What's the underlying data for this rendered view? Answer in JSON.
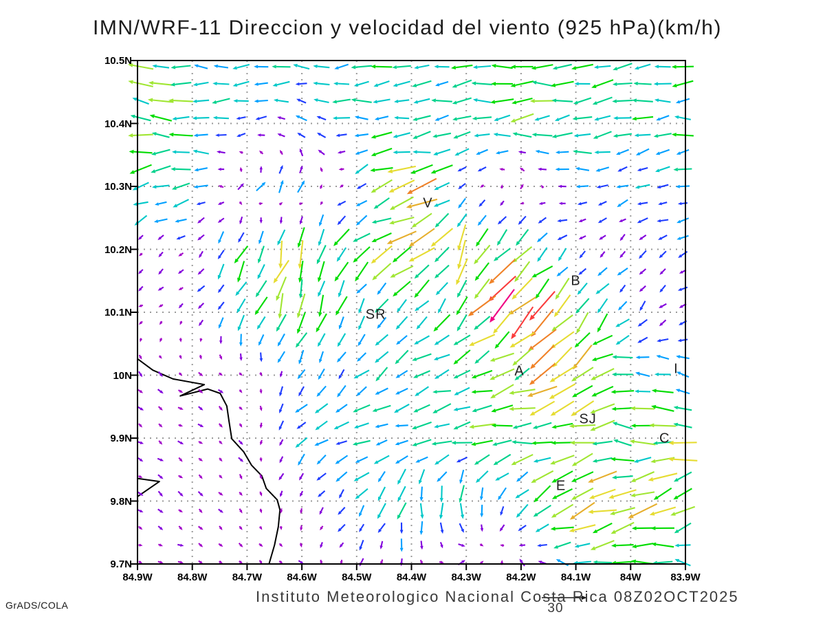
{
  "title": "IMN/WRF-11 Direccion y velocidad del viento (925 hPa)(km/h)",
  "footer": {
    "caption": "Instituto Meteorologico Nacional Costa Rica 08Z02OCT2025",
    "credit": "GrADS/COLA"
  },
  "reference_vector": {
    "label": "30",
    "value": 30,
    "units": "km/h"
  },
  "plot": {
    "lat_ticks": [
      {
        "label": "10.5N",
        "value": 10.5
      },
      {
        "label": "10.4N",
        "value": 10.4
      },
      {
        "label": "10.3N",
        "value": 10.3
      },
      {
        "label": "10.2N",
        "value": 10.2
      },
      {
        "label": "10.1N",
        "value": 10.1
      },
      {
        "label": "10N",
        "value": 10.0
      },
      {
        "label": "9.9N",
        "value": 9.9
      },
      {
        "label": "9.8N",
        "value": 9.8
      },
      {
        "label": "9.7N",
        "value": 9.7
      }
    ],
    "lon_ticks": [
      {
        "label": "84.9W",
        "value": -84.9
      },
      {
        "label": "84.8W",
        "value": -84.8
      },
      {
        "label": "84.7W",
        "value": -84.7
      },
      {
        "label": "84.6W",
        "value": -84.6
      },
      {
        "label": "84.5W",
        "value": -84.5
      },
      {
        "label": "84.4W",
        "value": -84.4
      },
      {
        "label": "84.3W",
        "value": -84.3
      },
      {
        "label": "84.2W",
        "value": -84.2
      },
      {
        "label": "84.1W",
        "value": -84.1
      },
      {
        "label": "84W",
        "value": -84.0
      },
      {
        "label": "83.9W",
        "value": -83.9
      }
    ],
    "lat_range": {
      "min": 9.7,
      "max": 10.5
    },
    "lon_range": {
      "min": -84.9,
      "max": -83.9
    }
  },
  "stations": [
    {
      "label": "V",
      "lon": -84.37,
      "lat": 10.272
    },
    {
      "label": "B",
      "lon": -84.1,
      "lat": 10.148
    },
    {
      "label": "SR",
      "lon": -84.465,
      "lat": 10.095
    },
    {
      "label": "A",
      "lon": -84.203,
      "lat": 10.005
    },
    {
      "label": "SJ",
      "lon": -84.078,
      "lat": 9.928
    },
    {
      "label": "C",
      "lon": -83.938,
      "lat": 9.898
    },
    {
      "label": "E",
      "lon": -84.127,
      "lat": 9.822
    },
    {
      "label": "I",
      "lon": -83.917,
      "lat": 10.008
    }
  ],
  "chart_data": {
    "type": "quiver",
    "model": "IMN/WRF-11",
    "variable": "Direccion y velocidad del viento",
    "level": "925 hPa",
    "units": "km/h",
    "valid_time": "08Z02OCT2025",
    "reference_kmh": 30,
    "grid_lon": [
      -84.9,
      -84.8,
      -84.7,
      -84.6,
      -84.5,
      -84.4,
      -84.3,
      -84.2,
      -84.1,
      -84.0,
      -83.9
    ],
    "grid_lat": [
      10.5,
      10.4,
      10.3,
      10.2,
      10.1,
      10.0,
      9.9,
      9.8,
      9.7
    ],
    "uv_kmh": [
      [
        [
          -14,
          3
        ],
        [
          -11,
          1
        ],
        [
          -11,
          0
        ],
        [
          -11,
          0
        ],
        [
          -11,
          -1
        ],
        [
          -11,
          -1
        ],
        [
          -12,
          -1
        ],
        [
          -13,
          0
        ],
        [
          -13,
          -1
        ],
        [
          -12,
          -1
        ],
        [
          -12,
          0
        ]
      ],
      [
        [
          -15,
          2
        ],
        [
          -14,
          1
        ],
        [
          -7,
          -2
        ],
        [
          -6,
          2
        ],
        [
          -11,
          0
        ],
        [
          -11,
          -2
        ],
        [
          -12,
          -1
        ],
        [
          -13,
          -1
        ],
        [
          -12,
          -2
        ],
        [
          -11,
          -1
        ],
        [
          -12,
          -1
        ]
      ],
      [
        [
          -13,
          -5
        ],
        [
          -11,
          -3
        ],
        [
          4,
          5
        ],
        [
          4,
          7
        ],
        [
          -5,
          -5
        ],
        [
          -21,
          -5
        ],
        [
          -4,
          -4
        ],
        [
          2,
          4
        ],
        [
          -8,
          1
        ],
        [
          -7,
          -3
        ],
        [
          -9,
          -1
        ]
      ],
      [
        [
          -3,
          -2
        ],
        [
          -3,
          -3
        ],
        [
          -6,
          -13
        ],
        [
          -4,
          -15
        ],
        [
          -12,
          -9
        ],
        [
          -16,
          -7
        ],
        [
          -4,
          -17
        ],
        [
          -13,
          -11
        ],
        [
          -3,
          -3
        ],
        [
          -4,
          -4
        ],
        [
          -6,
          -2
        ]
      ],
      [
        [
          -3,
          -2
        ],
        [
          -3,
          -3
        ],
        [
          -4,
          -11
        ],
        [
          -5,
          -14
        ],
        [
          -4,
          -9
        ],
        [
          -7,
          -9
        ],
        [
          -9,
          -12
        ],
        [
          -20,
          -18
        ],
        [
          -9,
          -13
        ],
        [
          -5,
          -6
        ],
        [
          -4,
          -3
        ]
      ],
      [
        [
          3,
          -3
        ],
        [
          3,
          -2
        ],
        [
          2,
          -2
        ],
        [
          -4,
          -7
        ],
        [
          -7,
          -7
        ],
        [
          -11,
          -5
        ],
        [
          -13,
          -4
        ],
        [
          -14,
          -6
        ],
        [
          -18,
          -13
        ],
        [
          -12,
          2
        ],
        [
          -9,
          3
        ]
      ],
      [
        [
          3,
          -2
        ],
        [
          3,
          -2
        ],
        [
          2,
          -3
        ],
        [
          -7,
          -6
        ],
        [
          -9,
          -4
        ],
        [
          -11,
          -2
        ],
        [
          -13,
          -2
        ],
        [
          -14,
          -2
        ],
        [
          -17,
          -4
        ],
        [
          -12,
          2
        ],
        [
          -18,
          2
        ]
      ],
      [
        [
          3,
          -2
        ],
        [
          3,
          -3
        ],
        [
          2,
          -3
        ],
        [
          -2,
          -4
        ],
        [
          -6,
          -7
        ],
        [
          -3,
          -13
        ],
        [
          2,
          -11
        ],
        [
          -9,
          -8
        ],
        [
          -16,
          -8
        ],
        [
          -19,
          -5
        ],
        [
          -13,
          -9
        ]
      ],
      [
        [
          3,
          -1
        ],
        [
          3,
          -1
        ],
        [
          2,
          -2
        ],
        [
          3,
          -2
        ],
        [
          -3,
          -4
        ],
        [
          1,
          -5
        ],
        [
          5,
          3
        ],
        [
          -3,
          4
        ],
        [
          -11,
          2
        ],
        [
          -14,
          -2
        ],
        [
          -10,
          4
        ]
      ]
    ],
    "speed_color_scale": [
      {
        "max": 4,
        "color": "#A000C8"
      },
      {
        "max": 6,
        "color": "#8200DC"
      },
      {
        "max": 8,
        "color": "#1E3CFF"
      },
      {
        "max": 10,
        "color": "#00A0FF"
      },
      {
        "max": 12,
        "color": "#00C8C8"
      },
      {
        "max": 14,
        "color": "#00D28C"
      },
      {
        "max": 16,
        "color": "#00DC00"
      },
      {
        "max": 18,
        "color": "#A0E632"
      },
      {
        "max": 20,
        "color": "#E6DC32"
      },
      {
        "max": 22,
        "color": "#E6AF2D"
      },
      {
        "max": 24,
        "color": "#F08228"
      },
      {
        "max": 26,
        "color": "#FA3C3C"
      },
      {
        "max": 999,
        "color": "#F00082"
      }
    ]
  },
  "coastline": {
    "segments": [
      [
        [
          -84.9,
          10.026
        ],
        [
          -84.872,
          10.008
        ],
        [
          -84.835,
          9.994
        ],
        [
          -84.778,
          9.985
        ],
        [
          -84.822,
          9.967
        ],
        [
          -84.772,
          9.978
        ],
        [
          -84.749,
          9.971
        ],
        [
          -84.737,
          9.951
        ],
        [
          -84.733,
          9.927
        ],
        [
          -84.728,
          9.899
        ],
        [
          -84.706,
          9.878
        ],
        [
          -84.692,
          9.857
        ],
        [
          -84.673,
          9.84
        ],
        [
          -84.665,
          9.82
        ],
        [
          -84.645,
          9.802
        ],
        [
          -84.64,
          9.786
        ],
        [
          -84.643,
          9.759
        ],
        [
          -84.65,
          9.73
        ],
        [
          -84.66,
          9.7
        ]
      ],
      [
        [
          -84.9,
          9.836
        ],
        [
          -84.86,
          9.831
        ],
        [
          -84.9,
          9.807
        ]
      ]
    ]
  },
  "colors": {
    "grid": "#999999",
    "coast": "#000000",
    "frame": "#000000",
    "text": "#1a1a1a"
  }
}
